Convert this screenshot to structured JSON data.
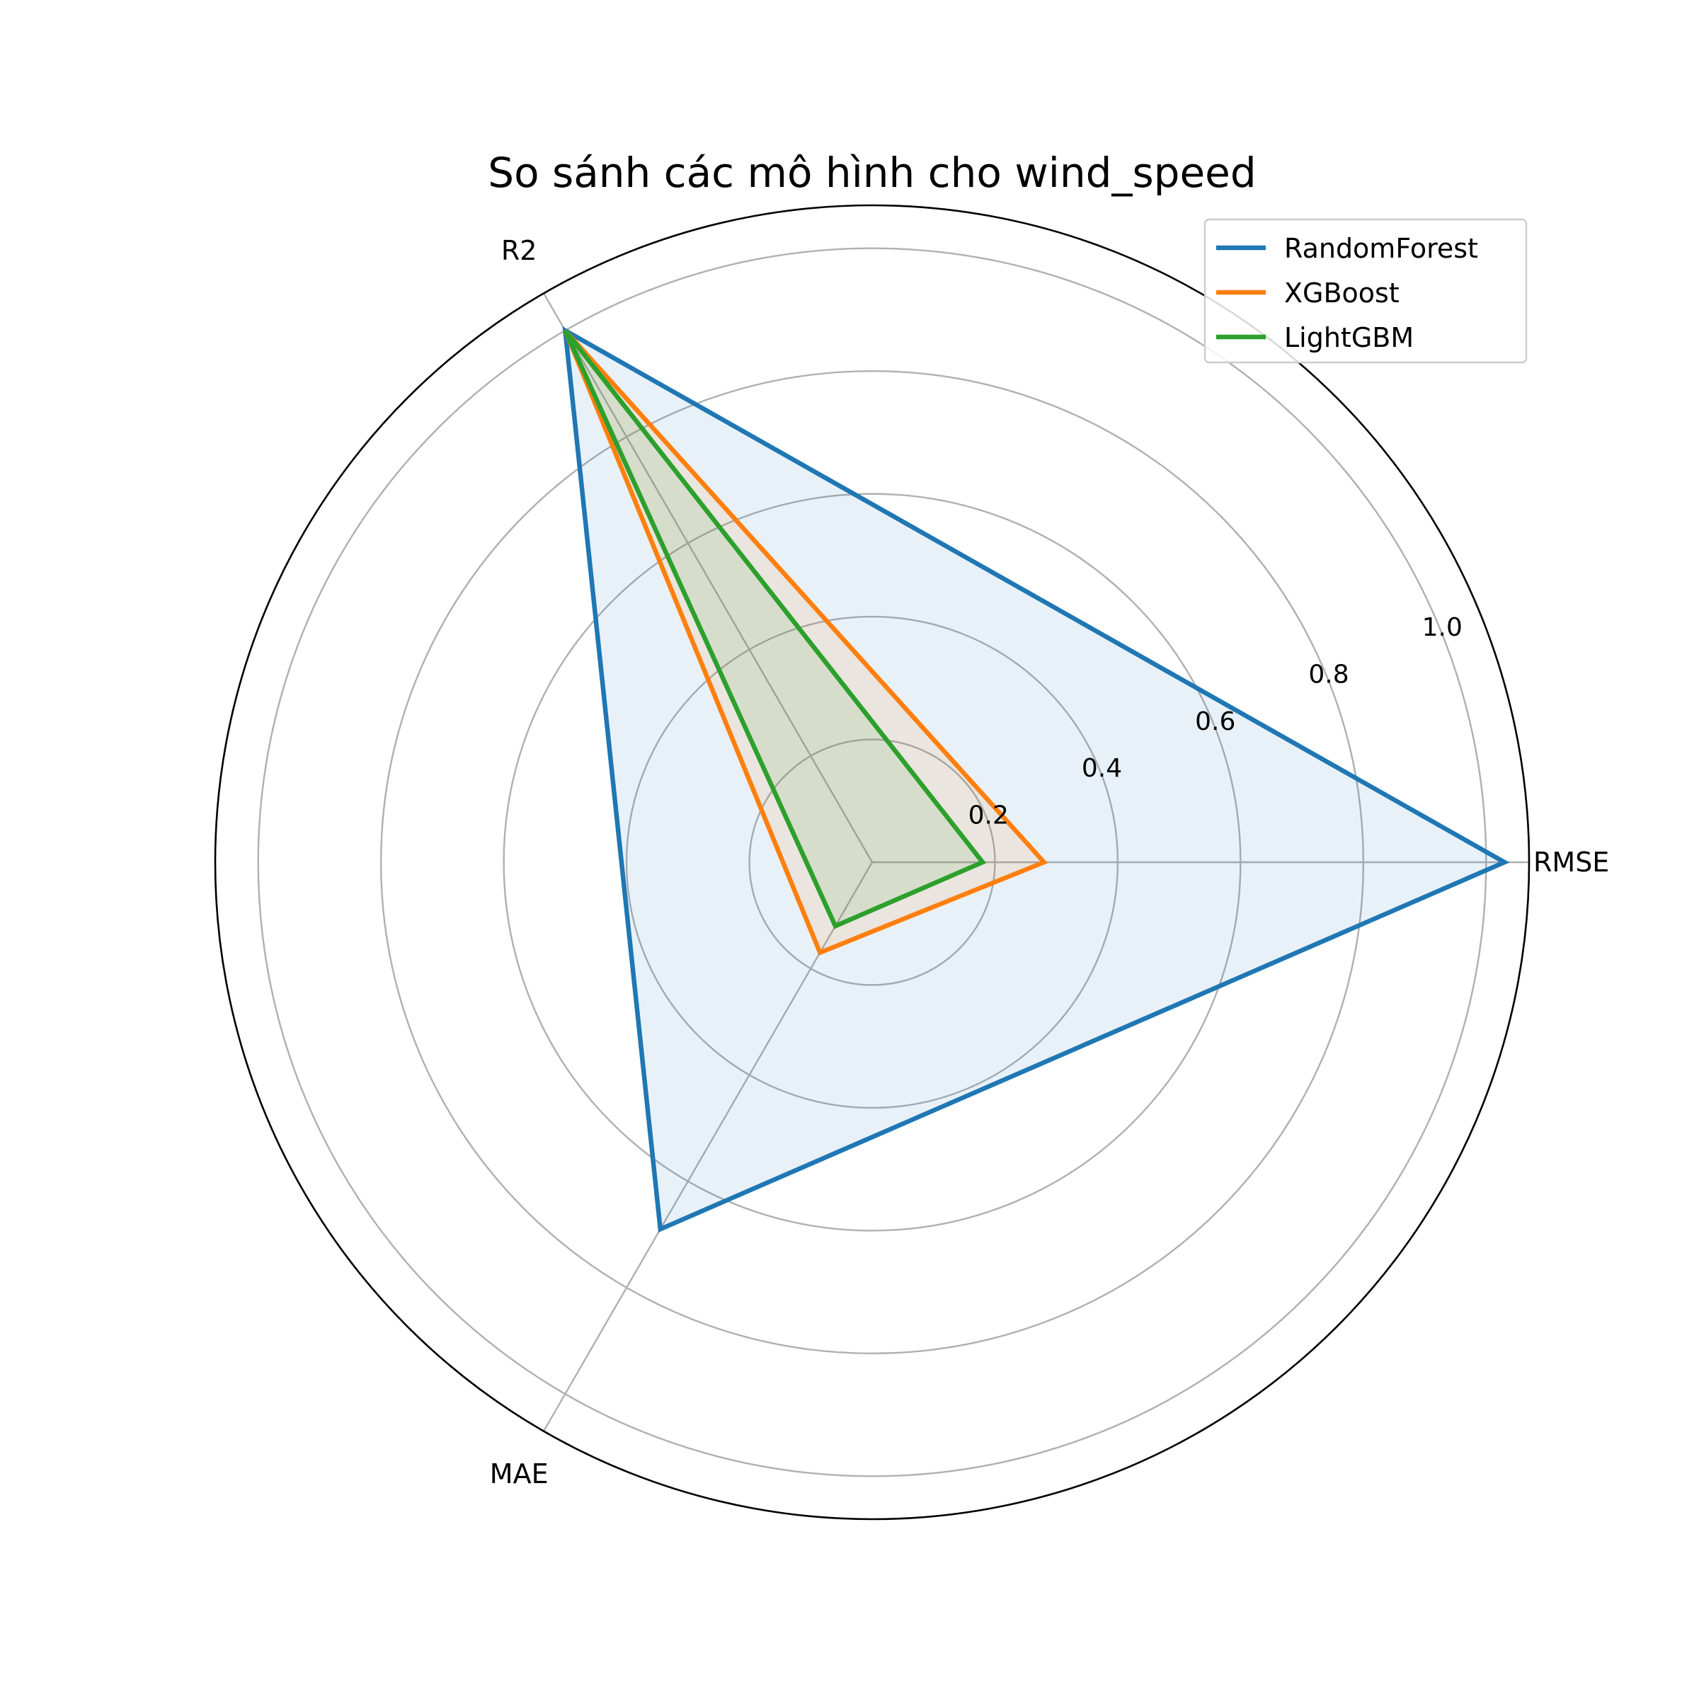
{
  "chart_data": {
    "type": "radar",
    "title": "So sánh các mô hình cho wind_speed",
    "axes": [
      "RMSE",
      "R2",
      "MAE"
    ],
    "rlim": [
      0,
      1.07
    ],
    "r_ticks": [
      0.2,
      0.4,
      0.6,
      0.8,
      1.0
    ],
    "r_tick_labels": [
      "0.2",
      "0.4",
      "0.6",
      "0.8",
      "1.0"
    ],
    "grid": true,
    "legend_position": "top-right",
    "series": [
      {
        "name": "RandomForest",
        "color": "#1f77b4",
        "values": [
          1.03,
          1.0,
          0.69
        ]
      },
      {
        "name": "XGBoost",
        "color": "#ff7f0e",
        "values": [
          0.28,
          1.0,
          0.17
        ]
      },
      {
        "name": "LightGBM",
        "color": "#2ca02c",
        "values": [
          0.18,
          1.0,
          0.12
        ]
      }
    ]
  }
}
